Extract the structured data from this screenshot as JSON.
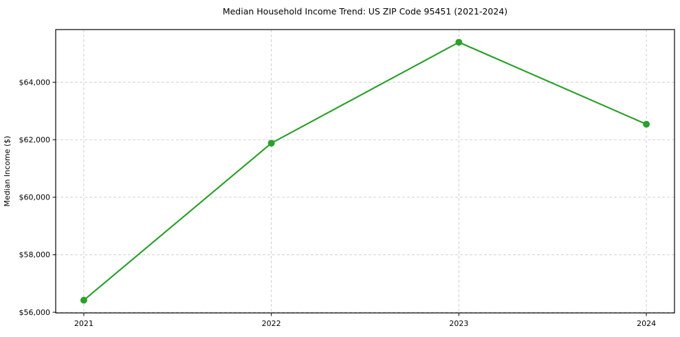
{
  "chart_data": {
    "type": "line",
    "title": "Median Household Income Trend: US ZIP Code 95451 (2021-2024)",
    "xlabel": "",
    "ylabel": "Median Income ($)",
    "x": [
      2021,
      2022,
      2023,
      2024
    ],
    "xticks": [
      "2021",
      "2022",
      "2023",
      "2024"
    ],
    "series": [
      {
        "name": "Median Household Income",
        "values": [
          56420,
          61880,
          65390,
          62540
        ]
      }
    ],
    "yticks": [
      56000,
      58000,
      60000,
      62000,
      64000
    ],
    "ytick_labels": [
      "$56,000",
      "$58,000",
      "$60,000",
      "$62,000",
      "$64,000"
    ],
    "xlim": [
      2020.85,
      2024.15
    ],
    "ylim": [
      55977,
      65831
    ],
    "grid": true,
    "legend": "none",
    "style": {
      "line_color": "#2ca02c",
      "marker": "circle",
      "marker_radius": 5,
      "line_width": 2.2,
      "grid_color": "#c9c9c9",
      "grid_dash": "4 3",
      "spine_color": "#000000",
      "background": "#ffffff",
      "text_color": "#000000"
    }
  }
}
